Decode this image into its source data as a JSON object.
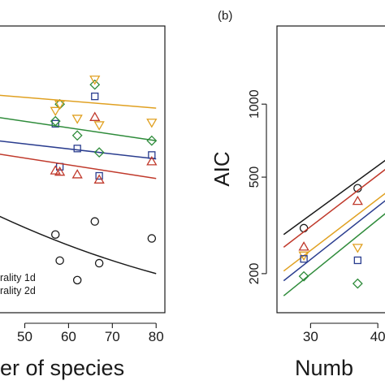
{
  "chart_data": [
    {
      "panel": "a",
      "type": "scatter",
      "title": "",
      "xlabel": "er of species",
      "ylabel": "",
      "xlim": [
        43.6,
        82
      ],
      "ylim": [
        -12.0,
        10.0
      ],
      "xticks": [
        50,
        60,
        70,
        80
      ],
      "yticks": [],
      "grid": false,
      "legend_position": "bottom-left",
      "legend": [
        "rality 1d",
        "rality 2d"
      ],
      "series": [
        {
          "marker": "circle",
          "color": "#1a1a1a",
          "x": [
            57,
            58,
            62,
            66,
            67,
            79
          ],
          "y": [
            -6.0,
            -8.0,
            -9.5,
            -5.0,
            -8.2,
            -6.3
          ],
          "fit": [
            [
              43.6,
              -4.5
            ],
            [
              80,
              -9.0
            ]
          ]
        },
        {
          "marker": "square",
          "color": "#2a3d8f",
          "x": [
            57,
            58,
            62,
            66,
            67,
            79
          ],
          "y": [
            2.5,
            -0.8,
            0.6,
            4.6,
            -1.5,
            0.1
          ],
          "fit": [
            [
              43.6,
              1.2
            ],
            [
              80,
              -0.2
            ]
          ]
        },
        {
          "marker": "triangle",
          "color": "#c0392b",
          "x": [
            57,
            58,
            62,
            66,
            67,
            79
          ],
          "y": [
            -1.1,
            -1.2,
            -1.4,
            3.0,
            -1.8,
            -0.4
          ],
          "fit": [
            [
              43.6,
              0.2
            ],
            [
              80,
              -1.7
            ]
          ]
        },
        {
          "marker": "diamond",
          "color": "#2e8b3a",
          "x": [
            57,
            58,
            62,
            66,
            67,
            79
          ],
          "y": [
            2.7,
            4.0,
            1.6,
            5.5,
            0.3,
            1.2
          ],
          "fit": [
            [
              43.6,
              3.0
            ],
            [
              80,
              1.2
            ]
          ]
        },
        {
          "marker": "triangle-down",
          "color": "#e0a020",
          "x": [
            57,
            58,
            62,
            66,
            67,
            79
          ],
          "y": [
            3.5,
            4.0,
            2.9,
            5.9,
            2.4,
            2.6
          ],
          "fit": [
            [
              43.6,
              4.7
            ],
            [
              80,
              3.7
            ]
          ]
        }
      ]
    },
    {
      "panel": "b",
      "type": "scatter",
      "panel_label": "(b)",
      "title": "",
      "xlabel": "Numb",
      "ylabel": "AIC",
      "xlim": [
        25,
        43
      ],
      "ylim": [
        138,
        2100
      ],
      "yscale": "log",
      "xticks": [
        30,
        40
      ],
      "yticks": [
        200,
        500,
        1000
      ],
      "grid": false,
      "series": [
        {
          "marker": "circle",
          "color": "#1a1a1a",
          "x": [
            29,
            37
          ],
          "y": [
            308,
            450
          ],
          "fit": [
            [
              26,
              290
            ],
            [
              43,
              640
            ]
          ]
        },
        {
          "marker": "triangle",
          "color": "#c0392b",
          "x": [
            29,
            37
          ],
          "y": [
            258,
            398
          ],
          "fit": [
            [
              26,
              257
            ],
            [
              43,
              590
            ]
          ]
        },
        {
          "marker": "triangle-down",
          "color": "#e0a020",
          "x": [
            29,
            37
          ],
          "y": [
            238,
            256
          ],
          "fit": [
            [
              26,
              205
            ],
            [
              43,
              470
            ]
          ]
        },
        {
          "marker": "square",
          "color": "#2a3d8f",
          "x": [
            29,
            37
          ],
          "y": [
            230,
            227
          ],
          "fit": [
            [
              26,
              187
            ],
            [
              43,
              440
            ]
          ]
        },
        {
          "marker": "diamond",
          "color": "#2e8b3a",
          "x": [
            29,
            37
          ],
          "y": [
            195,
            182
          ],
          "fit": [
            [
              26,
              162
            ],
            [
              43,
              390
            ]
          ]
        }
      ]
    }
  ]
}
